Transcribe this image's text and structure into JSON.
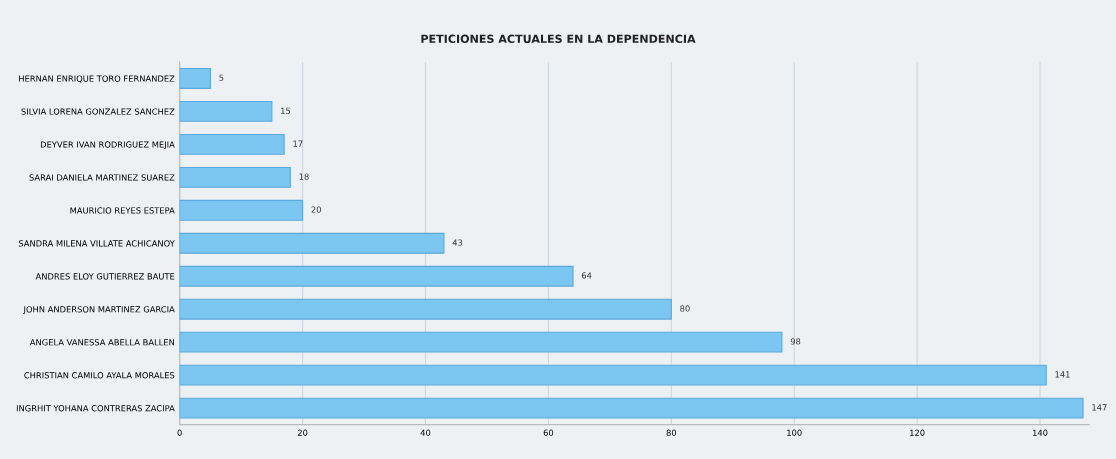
{
  "chart_data": {
    "type": "bar",
    "orientation": "horizontal",
    "title": "PETICIONES ACTUALES EN LA DEPENDENCIA",
    "categories": [
      "HERNAN ENRIQUE TORO FERNANDEZ",
      "SILVIA LORENA GONZALEZ SANCHEZ",
      "DEYVER IVAN RODRIGUEZ MEJIA",
      "SARAI DANIELA MARTINEZ SUAREZ",
      "MAURICIO REYES ESTEPA",
      "SANDRA MILENA VILLATE ACHICANOY",
      "ANDRES ELOY GUTIERREZ BAUTE",
      "JOHN ANDERSON MARTINEZ GARCIA",
      "ANGELA VANESSA ABELLA BALLEN",
      "CHRISTIAN CAMILO AYALA MORALES",
      "INGRHIT YOHANA CONTRERAS ZACIPA"
    ],
    "values": [
      5,
      15,
      17,
      18,
      20,
      43,
      64,
      80,
      98,
      141,
      147
    ],
    "color": "#7cc6f2",
    "xlim": [
      0,
      148
    ],
    "xticks": [
      0,
      20,
      40,
      60,
      80,
      100,
      120,
      140
    ],
    "grid": "x",
    "data_labels": true
  }
}
